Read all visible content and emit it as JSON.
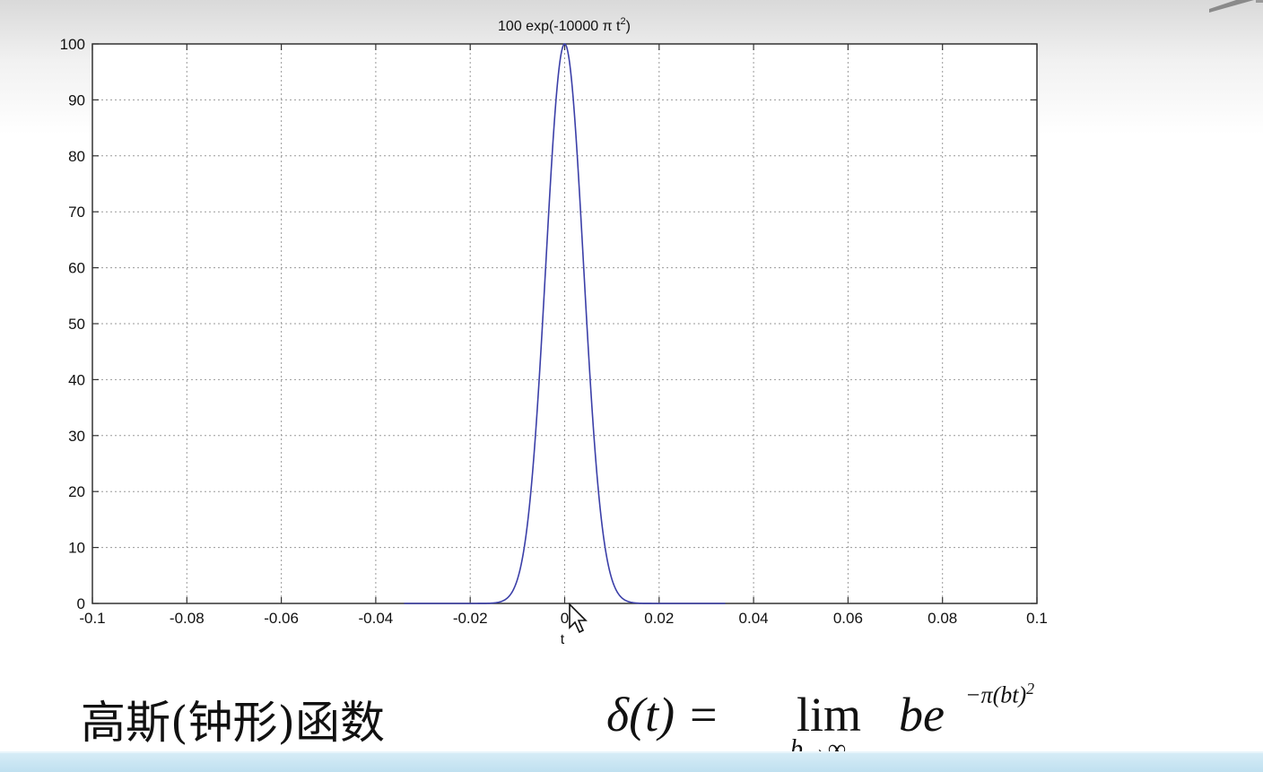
{
  "chart_data": {
    "type": "line",
    "title": "100 exp(-10000 π t²)",
    "title_prefix": "100 exp(-10000 π t",
    "title_sup": "2",
    "title_suffix": ")",
    "xlabel": "t",
    "ylabel": "",
    "xlim": [
      -0.1,
      0.1
    ],
    "ylim": [
      0,
      100
    ],
    "grid": true,
    "x_ticks": [
      "-0.1",
      "-0.08",
      "-0.06",
      "-0.04",
      "-0.02",
      "0",
      "0.02",
      "0.04",
      "0.06",
      "0.08",
      "0.1"
    ],
    "y_ticks": [
      "0",
      "10",
      "20",
      "30",
      "40",
      "50",
      "60",
      "70",
      "80",
      "90",
      "100"
    ],
    "series": [
      {
        "color": "#3b3fa8",
        "x_range": [
          -0.034,
          0.034
        ],
        "amplitude": 100,
        "coefficient": 10000
      }
    ]
  },
  "caption": {
    "title": "高斯(钟形)函数",
    "formula_lhs": "δ(t) =",
    "formula_lim": "lim",
    "formula_sub": "b→∞",
    "formula_body": "be",
    "formula_exp": "−π(bt)",
    "formula_exp_sup": "2"
  },
  "colors": {
    "curve": "#3b3fa8",
    "grid": "#9a9a9a",
    "axes": "#333333"
  },
  "icons": [
    "mouse-cursor-icon"
  ]
}
